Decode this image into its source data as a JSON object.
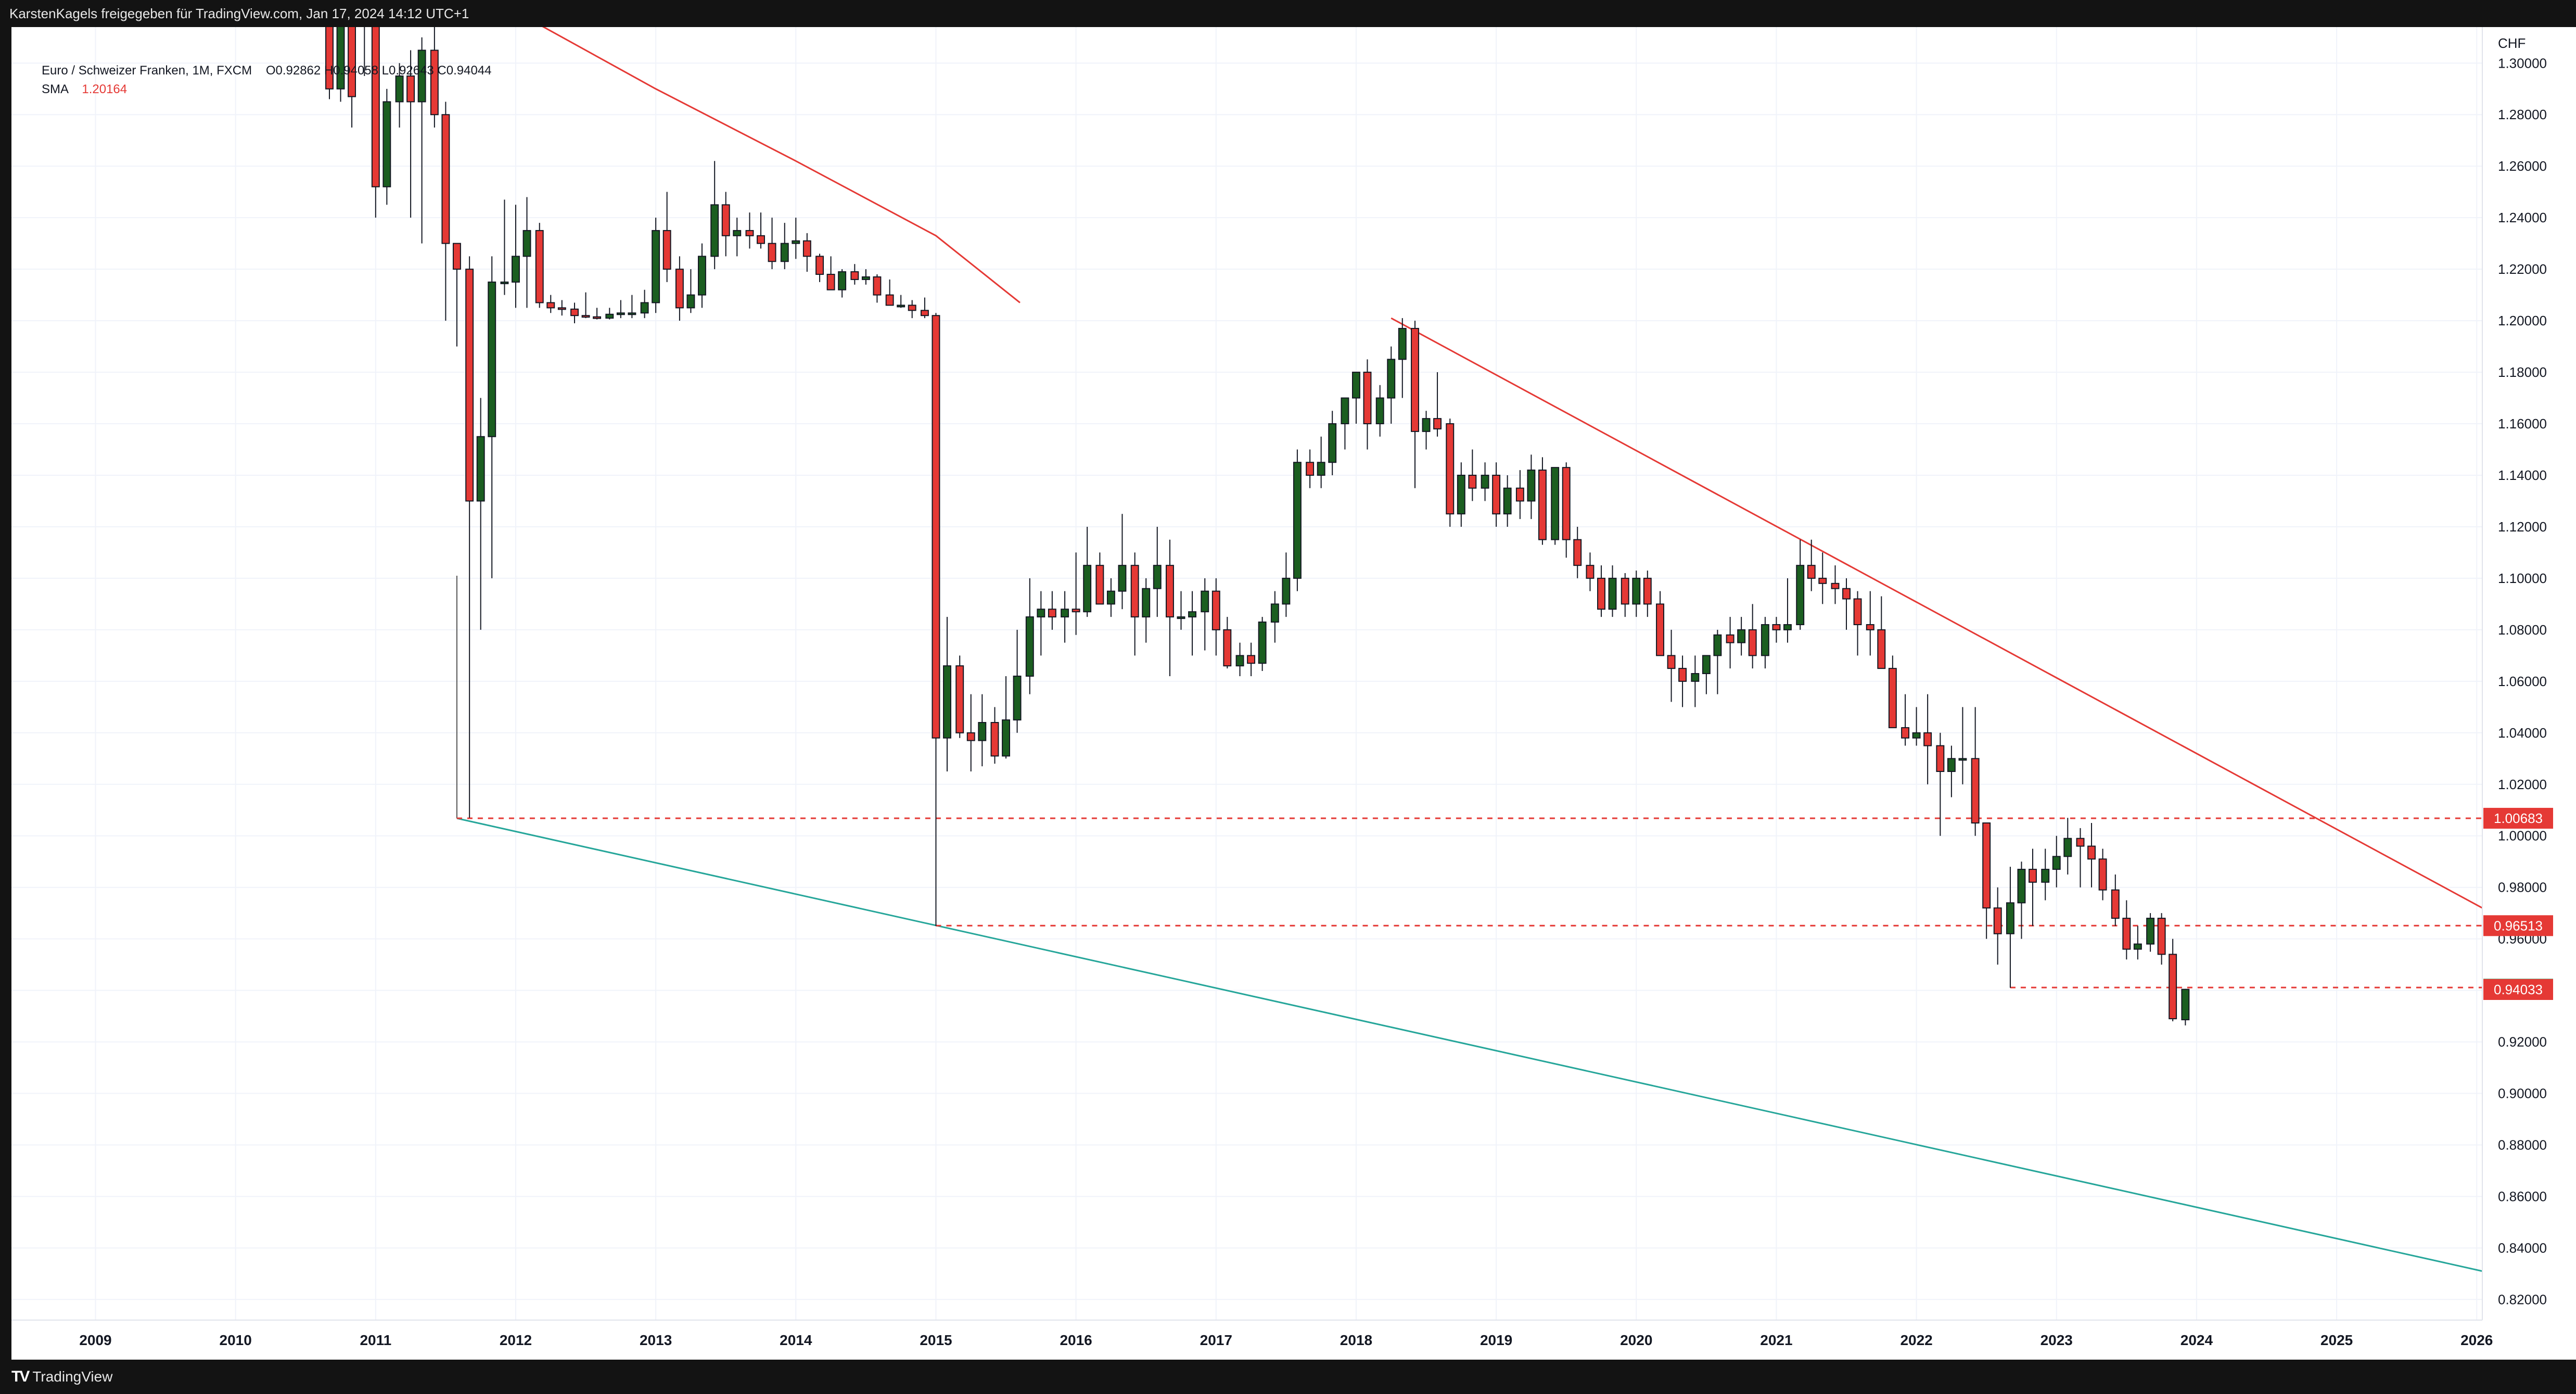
{
  "header": {
    "credit": "KarstenKagels freigegeben für TradingView.com, Jan 17, 2024 14:12 UTC+1"
  },
  "legend": {
    "symbol": "Euro / Schweizer Franken, 1M, FXCM",
    "ohlc": "O0.92862  H0.94058  L0.92643  C0.94044",
    "sma_label": "SMA",
    "sma_value": "1.20164"
  },
  "footer": {
    "brand": "TradingView"
  },
  "colors": {
    "up": "#1b5e20",
    "down": "#e53935",
    "sma": "#e53935",
    "resistance": "#e53935",
    "support": "#26a69a",
    "grid": "#f0f3fa",
    "axis_text": "#131722"
  },
  "chart_data": {
    "type": "candlestick",
    "currency_label": "CHF",
    "ylim": [
      0.812,
      1.314
    ],
    "yticks": [
      0.82,
      0.84,
      0.86,
      0.88,
      0.9,
      0.92,
      0.94,
      0.96,
      0.98,
      1.0,
      1.02,
      1.04,
      1.06,
      1.08,
      1.1,
      1.12,
      1.14,
      1.16,
      1.18,
      1.2,
      1.22,
      1.24,
      1.26,
      1.28,
      1.3
    ],
    "ytick_labels": [
      "0.82000",
      "0.84000",
      "0.86000",
      "0.88000",
      "0.90000",
      "0.92000",
      "0.94000",
      "0.96000",
      "0.98000",
      "1.00000",
      "1.02000",
      "1.04000",
      "1.06000",
      "1.08000",
      "1.10000",
      "1.12000",
      "1.14000",
      "1.16000",
      "1.18000",
      "1.20000",
      "1.22000",
      "1.24000",
      "1.26000",
      "1.28000",
      "1.30000"
    ],
    "xlim": [
      2008.4,
      2026.04
    ],
    "xticks": [
      2009,
      2010,
      2011,
      2012,
      2013,
      2014,
      2015,
      2016,
      2017,
      2018,
      2019,
      2020,
      2021,
      2022,
      2023,
      2024,
      2025,
      2026
    ],
    "xtick_labels": [
      "2009",
      "2010",
      "2011",
      "2012",
      "2013",
      "2014",
      "2015",
      "2016",
      "2017",
      "2018",
      "2019",
      "2020",
      "2021",
      "2022",
      "2023",
      "2024",
      "2025",
      "2026"
    ],
    "candles": [
      [
        2010.67,
        1.3377,
        1.34,
        1.286,
        1.29
      ],
      [
        2010.75,
        1.29,
        1.35,
        1.285,
        1.32
      ],
      [
        2010.83,
        1.32,
        1.345,
        1.275,
        1.287
      ],
      [
        2010.92,
        1.335,
        1.34,
        1.295,
        1.315
      ],
      [
        2011.0,
        1.315,
        1.32,
        1.24,
        1.252
      ],
      [
        2011.08,
        1.252,
        1.29,
        1.245,
        1.285
      ],
      [
        2011.17,
        1.285,
        1.3,
        1.275,
        1.295
      ],
      [
        2011.25,
        1.295,
        1.305,
        1.24,
        1.285
      ],
      [
        2011.33,
        1.285,
        1.31,
        1.23,
        1.305
      ],
      [
        2011.42,
        1.305,
        1.315,
        1.275,
        1.28
      ],
      [
        2011.5,
        1.28,
        1.285,
        1.2,
        1.23
      ],
      [
        2011.58,
        1.23,
        1.23,
        1.19,
        1.22
      ],
      [
        2011.67,
        1.22,
        1.225,
        1.007,
        1.13
      ],
      [
        2011.75,
        1.13,
        1.17,
        1.08,
        1.155
      ],
      [
        2011.83,
        1.155,
        1.225,
        1.1,
        1.215
      ],
      [
        2011.92,
        1.215,
        1.247,
        1.21,
        1.215
      ],
      [
        2012.0,
        1.215,
        1.245,
        1.205,
        1.225
      ],
      [
        2012.08,
        1.225,
        1.248,
        1.205,
        1.235
      ],
      [
        2012.17,
        1.235,
        1.238,
        1.205,
        1.207
      ],
      [
        2012.25,
        1.207,
        1.21,
        1.203,
        1.205
      ],
      [
        2012.33,
        1.205,
        1.208,
        1.202,
        1.2045
      ],
      [
        2012.42,
        1.2045,
        1.207,
        1.199,
        1.202
      ],
      [
        2012.5,
        1.202,
        1.211,
        1.201,
        1.2015
      ],
      [
        2012.58,
        1.2015,
        1.205,
        1.2005,
        1.201
      ],
      [
        2012.67,
        1.201,
        1.205,
        1.2005,
        1.2025
      ],
      [
        2012.75,
        1.2025,
        1.208,
        1.201,
        1.203
      ],
      [
        2012.83,
        1.203,
        1.21,
        1.201,
        1.203
      ],
      [
        2012.92,
        1.203,
        1.212,
        1.201,
        1.207
      ],
      [
        2013.0,
        1.207,
        1.24,
        1.203,
        1.235
      ],
      [
        2013.08,
        1.235,
        1.25,
        1.215,
        1.22
      ],
      [
        2013.17,
        1.22,
        1.225,
        1.2,
        1.205
      ],
      [
        2013.25,
        1.205,
        1.22,
        1.203,
        1.21
      ],
      [
        2013.33,
        1.21,
        1.23,
        1.205,
        1.225
      ],
      [
        2013.42,
        1.225,
        1.262,
        1.22,
        1.245
      ],
      [
        2013.5,
        1.245,
        1.25,
        1.225,
        1.233
      ],
      [
        2013.58,
        1.233,
        1.24,
        1.225,
        1.235
      ],
      [
        2013.67,
        1.235,
        1.242,
        1.228,
        1.233
      ],
      [
        2013.75,
        1.233,
        1.242,
        1.228,
        1.23
      ],
      [
        2013.83,
        1.23,
        1.24,
        1.22,
        1.223
      ],
      [
        2013.92,
        1.223,
        1.238,
        1.22,
        1.23
      ],
      [
        2014.0,
        1.23,
        1.24,
        1.224,
        1.231
      ],
      [
        2014.08,
        1.231,
        1.234,
        1.219,
        1.225
      ],
      [
        2014.17,
        1.225,
        1.226,
        1.215,
        1.218
      ],
      [
        2014.25,
        1.218,
        1.225,
        1.215,
        1.212
      ],
      [
        2014.33,
        1.212,
        1.22,
        1.209,
        1.219
      ],
      [
        2014.42,
        1.219,
        1.222,
        1.214,
        1.216
      ],
      [
        2014.5,
        1.216,
        1.22,
        1.214,
        1.217
      ],
      [
        2014.58,
        1.217,
        1.218,
        1.207,
        1.21
      ],
      [
        2014.67,
        1.21,
        1.216,
        1.206,
        1.206
      ],
      [
        2014.75,
        1.206,
        1.21,
        1.205,
        1.206
      ],
      [
        2014.83,
        1.206,
        1.208,
        1.201,
        1.204
      ],
      [
        2014.92,
        1.204,
        1.209,
        1.201,
        1.202
      ],
      [
        2015.0,
        1.202,
        1.203,
        0.965,
        1.038
      ],
      [
        2015.08,
        1.038,
        1.085,
        1.025,
        1.066
      ],
      [
        2015.17,
        1.066,
        1.07,
        1.038,
        1.04
      ],
      [
        2015.25,
        1.04,
        1.055,
        1.025,
        1.037
      ],
      [
        2015.33,
        1.037,
        1.055,
        1.027,
        1.044
      ],
      [
        2015.42,
        1.044,
        1.05,
        1.028,
        1.031
      ],
      [
        2015.5,
        1.031,
        1.062,
        1.03,
        1.045
      ],
      [
        2015.58,
        1.045,
        1.08,
        1.04,
        1.062
      ],
      [
        2015.67,
        1.062,
        1.1,
        1.055,
        1.085
      ],
      [
        2015.75,
        1.085,
        1.095,
        1.07,
        1.088
      ],
      [
        2015.83,
        1.088,
        1.095,
        1.08,
        1.085
      ],
      [
        2015.92,
        1.085,
        1.095,
        1.075,
        1.088
      ],
      [
        2016.0,
        1.088,
        1.11,
        1.078,
        1.087
      ],
      [
        2016.08,
        1.087,
        1.12,
        1.085,
        1.105
      ],
      [
        2016.17,
        1.105,
        1.11,
        1.09,
        1.09
      ],
      [
        2016.25,
        1.09,
        1.1,
        1.085,
        1.095
      ],
      [
        2016.33,
        1.095,
        1.125,
        1.088,
        1.105
      ],
      [
        2016.42,
        1.105,
        1.11,
        1.07,
        1.085
      ],
      [
        2016.5,
        1.085,
        1.1,
        1.075,
        1.096
      ],
      [
        2016.58,
        1.096,
        1.12,
        1.085,
        1.105
      ],
      [
        2016.67,
        1.105,
        1.115,
        1.062,
        1.085
      ],
      [
        2016.75,
        1.085,
        1.095,
        1.08,
        1.085
      ],
      [
        2016.83,
        1.085,
        1.095,
        1.07,
        1.087
      ],
      [
        2016.92,
        1.087,
        1.1,
        1.072,
        1.095
      ],
      [
        2017.0,
        1.095,
        1.1,
        1.07,
        1.08
      ],
      [
        2017.08,
        1.08,
        1.085,
        1.065,
        1.066
      ],
      [
        2017.17,
        1.066,
        1.075,
        1.062,
        1.07
      ],
      [
        2017.25,
        1.07,
        1.075,
        1.062,
        1.067
      ],
      [
        2017.33,
        1.067,
        1.085,
        1.064,
        1.083
      ],
      [
        2017.42,
        1.083,
        1.095,
        1.075,
        1.09
      ],
      [
        2017.5,
        1.09,
        1.11,
        1.085,
        1.1
      ],
      [
        2017.58,
        1.1,
        1.15,
        1.095,
        1.145
      ],
      [
        2017.67,
        1.145,
        1.15,
        1.135,
        1.14
      ],
      [
        2017.75,
        1.14,
        1.155,
        1.135,
        1.145
      ],
      [
        2017.83,
        1.145,
        1.165,
        1.14,
        1.16
      ],
      [
        2017.92,
        1.16,
        1.17,
        1.15,
        1.17
      ],
      [
        2018.0,
        1.17,
        1.18,
        1.16,
        1.18
      ],
      [
        2018.08,
        1.18,
        1.185,
        1.15,
        1.16
      ],
      [
        2018.17,
        1.16,
        1.175,
        1.155,
        1.17
      ],
      [
        2018.25,
        1.17,
        1.19,
        1.16,
        1.185
      ],
      [
        2018.33,
        1.185,
        1.201,
        1.17,
        1.197
      ],
      [
        2018.42,
        1.197,
        1.2,
        1.135,
        1.157
      ],
      [
        2018.5,
        1.157,
        1.165,
        1.15,
        1.162
      ],
      [
        2018.58,
        1.162,
        1.18,
        1.155,
        1.158
      ],
      [
        2018.67,
        1.16,
        1.162,
        1.12,
        1.125
      ],
      [
        2018.75,
        1.125,
        1.145,
        1.12,
        1.14
      ],
      [
        2018.83,
        1.14,
        1.15,
        1.13,
        1.135
      ],
      [
        2018.92,
        1.135,
        1.145,
        1.13,
        1.14
      ],
      [
        2019.0,
        1.14,
        1.145,
        1.12,
        1.125
      ],
      [
        2019.08,
        1.125,
        1.14,
        1.12,
        1.135
      ],
      [
        2019.17,
        1.135,
        1.142,
        1.123,
        1.13
      ],
      [
        2019.25,
        1.13,
        1.148,
        1.123,
        1.142
      ],
      [
        2019.33,
        1.142,
        1.147,
        1.113,
        1.115
      ],
      [
        2019.42,
        1.115,
        1.143,
        1.113,
        1.143
      ],
      [
        2019.5,
        1.143,
        1.145,
        1.108,
        1.115
      ],
      [
        2019.58,
        1.115,
        1.12,
        1.1,
        1.105
      ],
      [
        2019.67,
        1.105,
        1.11,
        1.095,
        1.1
      ],
      [
        2019.75,
        1.1,
        1.105,
        1.085,
        1.088
      ],
      [
        2019.83,
        1.088,
        1.105,
        1.085,
        1.1
      ],
      [
        2019.92,
        1.1,
        1.102,
        1.085,
        1.09
      ],
      [
        2020.0,
        1.09,
        1.103,
        1.085,
        1.1
      ],
      [
        2020.08,
        1.1,
        1.103,
        1.085,
        1.09
      ],
      [
        2020.17,
        1.09,
        1.095,
        1.07,
        1.07
      ],
      [
        2020.25,
        1.07,
        1.08,
        1.052,
        1.065
      ],
      [
        2020.33,
        1.065,
        1.07,
        1.05,
        1.06
      ],
      [
        2020.42,
        1.06,
        1.07,
        1.05,
        1.063
      ],
      [
        2020.5,
        1.063,
        1.07,
        1.055,
        1.07
      ],
      [
        2020.58,
        1.07,
        1.08,
        1.055,
        1.078
      ],
      [
        2020.67,
        1.078,
        1.085,
        1.065,
        1.075
      ],
      [
        2020.75,
        1.075,
        1.085,
        1.07,
        1.08
      ],
      [
        2020.83,
        1.08,
        1.09,
        1.065,
        1.07
      ],
      [
        2020.92,
        1.07,
        1.085,
        1.065,
        1.082
      ],
      [
        2021.0,
        1.082,
        1.085,
        1.075,
        1.08
      ],
      [
        2021.08,
        1.08,
        1.1,
        1.075,
        1.082
      ],
      [
        2021.17,
        1.082,
        1.115,
        1.08,
        1.105
      ],
      [
        2021.25,
        1.105,
        1.115,
        1.095,
        1.1
      ],
      [
        2021.33,
        1.1,
        1.11,
        1.09,
        1.098
      ],
      [
        2021.42,
        1.098,
        1.105,
        1.09,
        1.096
      ],
      [
        2021.5,
        1.096,
        1.1,
        1.08,
        1.092
      ],
      [
        2021.58,
        1.092,
        1.095,
        1.07,
        1.082
      ],
      [
        2021.67,
        1.082,
        1.095,
        1.07,
        1.08
      ],
      [
        2021.75,
        1.08,
        1.093,
        1.066,
        1.065
      ],
      [
        2021.83,
        1.065,
        1.07,
        1.042,
        1.042
      ],
      [
        2021.92,
        1.042,
        1.055,
        1.035,
        1.038
      ],
      [
        2022.0,
        1.038,
        1.05,
        1.035,
        1.04
      ],
      [
        2022.08,
        1.04,
        1.055,
        1.02,
        1.035
      ],
      [
        2022.17,
        1.035,
        1.04,
        1.0,
        1.025
      ],
      [
        2022.25,
        1.025,
        1.035,
        1.015,
        1.03
      ],
      [
        2022.33,
        1.03,
        1.05,
        1.02,
        1.03
      ],
      [
        2022.42,
        1.03,
        1.05,
        1.0,
        1.005
      ],
      [
        2022.5,
        1.005,
        1.005,
        0.96,
        0.972
      ],
      [
        2022.58,
        0.972,
        0.98,
        0.95,
        0.962
      ],
      [
        2022.67,
        0.962,
        0.988,
        0.941,
        0.974
      ],
      [
        2022.75,
        0.974,
        0.99,
        0.96,
        0.987
      ],
      [
        2022.83,
        0.987,
        0.995,
        0.965,
        0.982
      ],
      [
        2022.92,
        0.982,
        0.995,
        0.975,
        0.987
      ],
      [
        2023.0,
        0.987,
        1.0,
        0.98,
        0.992
      ],
      [
        2023.08,
        0.992,
        1.007,
        0.985,
        0.999
      ],
      [
        2023.17,
        0.999,
        1.003,
        0.98,
        0.996
      ],
      [
        2023.25,
        0.996,
        1.005,
        0.98,
        0.991
      ],
      [
        2023.33,
        0.991,
        0.995,
        0.975,
        0.979
      ],
      [
        2023.42,
        0.979,
        0.985,
        0.965,
        0.968
      ],
      [
        2023.5,
        0.968,
        0.975,
        0.952,
        0.956
      ],
      [
        2023.58,
        0.956,
        0.965,
        0.952,
        0.958
      ],
      [
        2023.67,
        0.958,
        0.97,
        0.955,
        0.968
      ],
      [
        2023.75,
        0.968,
        0.97,
        0.95,
        0.954
      ],
      [
        2023.83,
        0.954,
        0.96,
        0.928,
        0.929
      ],
      [
        2023.92,
        0.9286,
        0.9406,
        0.9264,
        0.9404
      ]
    ],
    "sma": [
      [
        2010.8,
        1.345
      ],
      [
        2012.0,
        1.32
      ],
      [
        2013.0,
        1.29
      ],
      [
        2014.0,
        1.262
      ],
      [
        2015.0,
        1.233
      ],
      [
        2015.6,
        1.207
      ]
    ],
    "resistance_line": [
      [
        2018.25,
        1.201
      ],
      [
        2026.04,
        0.972
      ]
    ],
    "support_line": [
      [
        2011.58,
        1.0068
      ],
      [
        2026.04,
        0.831
      ]
    ],
    "support_spike": [
      [
        2011.58,
        1.0068
      ],
      [
        2011.58,
        1.101
      ]
    ],
    "hlines": [
      {
        "y": 1.00683,
        "x_start": 2011.58,
        "label": "1.00683",
        "bg": "#e53935"
      },
      {
        "y": 0.96513,
        "x_start": 2015.0,
        "label": "0.96513",
        "bg": "#e53935"
      },
      {
        "y": 0.9411,
        "x_start": 2022.67,
        "label": "",
        "bg": "#e53935"
      }
    ],
    "price_tags": [
      {
        "y": 0.94044,
        "label": "0.94044",
        "bg": "#1b5e20"
      },
      {
        "y": 0.94033,
        "label": "0.94033",
        "bg": "#e53935"
      }
    ]
  }
}
